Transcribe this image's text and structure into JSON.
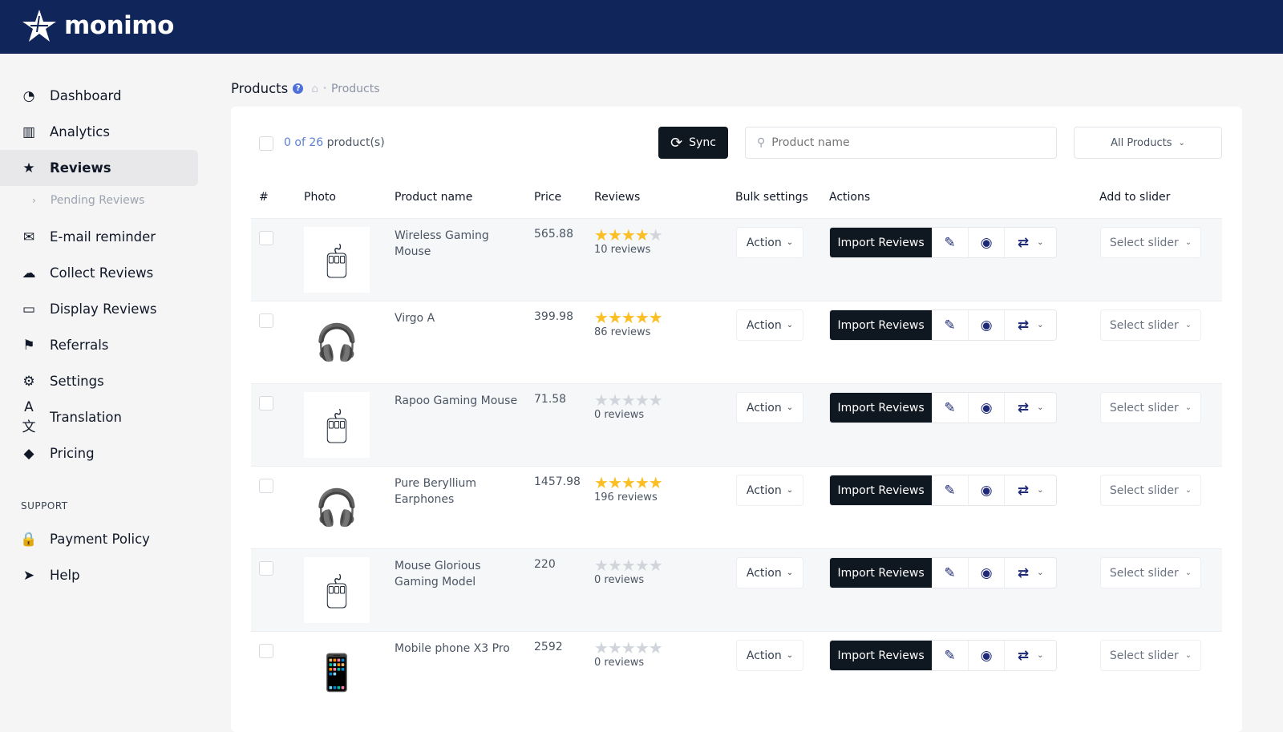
{
  "brand": "monimo",
  "sidebar": {
    "items": [
      {
        "label": "Dashboard",
        "icon": "gauge-icon",
        "glyph": "◔"
      },
      {
        "label": "Analytics",
        "icon": "bar-chart-icon",
        "glyph": "▥"
      },
      {
        "label": "Reviews",
        "icon": "star-icon",
        "glyph": "★",
        "active": true
      },
      {
        "label": "E-mail reminder",
        "icon": "envelope-icon",
        "glyph": "✉"
      },
      {
        "label": "Collect Reviews",
        "icon": "cloud-download-icon",
        "glyph": "☁"
      },
      {
        "label": "Display Reviews",
        "icon": "monitor-icon",
        "glyph": "▭"
      },
      {
        "label": "Referrals",
        "icon": "flag-icon",
        "glyph": "⚑"
      },
      {
        "label": "Settings",
        "icon": "gear-icon",
        "glyph": "⚙"
      },
      {
        "label": "Translation",
        "icon": "translate-icon",
        "glyph": "A文"
      },
      {
        "label": "Pricing",
        "icon": "tag-icon",
        "glyph": "◆"
      }
    ],
    "sub_item": "Pending Reviews",
    "support_label": "SUPPORT",
    "support_items": [
      {
        "label": "Payment Policy",
        "icon": "lock-icon",
        "glyph": "🔒"
      },
      {
        "label": "Help",
        "icon": "send-icon",
        "glyph": "➤"
      }
    ]
  },
  "breadcrumb": {
    "title": "Products",
    "crumb": "Products"
  },
  "toolbar": {
    "selected": "0",
    "of": "of",
    "total": "26",
    "suffix": "product(s)",
    "sync_label": "Sync",
    "search_placeholder": "Product name",
    "filter_label": "All Products"
  },
  "table": {
    "headers": [
      "#",
      "Photo",
      "Product name",
      "Price",
      "Reviews",
      "Bulk settings",
      "Actions",
      "Add to slider"
    ],
    "action_label": "Action",
    "import_label": "Import Reviews",
    "slider_placeholder": "Select slider",
    "rows": [
      {
        "name": "Wireless Gaming Mouse",
        "price": "565.88",
        "rating": 4,
        "reviews": "10 reviews",
        "photo": "🖱"
      },
      {
        "name": "Virgo A",
        "price": "399.98",
        "rating": 5,
        "reviews": "86 reviews",
        "photo": "🎧"
      },
      {
        "name": "Rapoo Gaming Mouse",
        "price": "71.58",
        "rating": 0,
        "reviews": "0 reviews",
        "photo": "🖱"
      },
      {
        "name": "Pure Beryllium Earphones",
        "price": "1457.98",
        "rating": 5,
        "reviews": "196 reviews",
        "photo": "🎧"
      },
      {
        "name": "Mouse Glorious Gaming Model",
        "price": "220",
        "rating": 0,
        "reviews": "0 reviews",
        "photo": "🖱"
      },
      {
        "name": "Mobile phone X3 Pro",
        "price": "2592",
        "rating": 0,
        "reviews": "0 reviews",
        "photo": "📱"
      }
    ]
  },
  "colors": {
    "header": "#102559",
    "star_on": "#fbbf24",
    "star_off": "#d1d5db",
    "accent": "#1e2a78",
    "button_dark": "#0f1720"
  }
}
